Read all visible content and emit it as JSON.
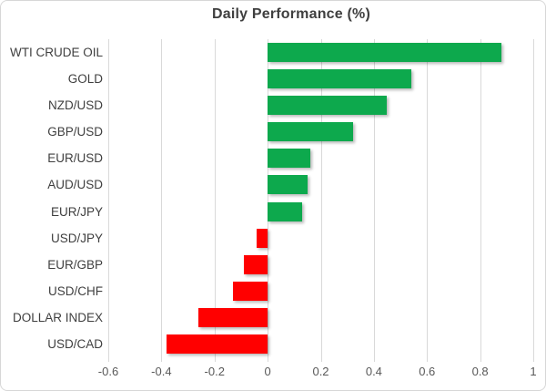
{
  "chart_data": {
    "type": "bar",
    "orientation": "horizontal",
    "title": "Daily Performance (%)",
    "categories": [
      "WTI CRUDE OIL",
      "GOLD",
      "NZD/USD",
      "GBP/USD",
      "EUR/USD",
      "AUD/USD",
      "EUR/JPY",
      "USD/JPY",
      "EUR/GBP",
      "USD/CHF",
      "DOLLAR INDEX",
      "USD/CAD"
    ],
    "values": [
      0.88,
      0.54,
      0.45,
      0.32,
      0.16,
      0.15,
      0.13,
      -0.04,
      -0.09,
      -0.13,
      -0.26,
      -0.38
    ],
    "xlim": [
      -0.6,
      1.0
    ],
    "x_ticks": [
      -0.6,
      -0.4,
      -0.2,
      0,
      0.2,
      0.4,
      0.6,
      0.8,
      1
    ],
    "x_tick_labels": [
      "-0.6",
      "-0.4",
      "-0.2",
      "0",
      "0.2",
      "0.4",
      "0.6",
      "0.8",
      "1"
    ],
    "grid": true,
    "legend": false,
    "xlabel": "",
    "ylabel": "",
    "colors": {
      "positive": "#0da94d",
      "negative": "#ff0000",
      "gridline": "#d9d9d9",
      "title": "#3f3f3f",
      "category_label": "#3f3f3f",
      "tick_label": "#595959",
      "frame_border": "#d7d7d7"
    }
  }
}
